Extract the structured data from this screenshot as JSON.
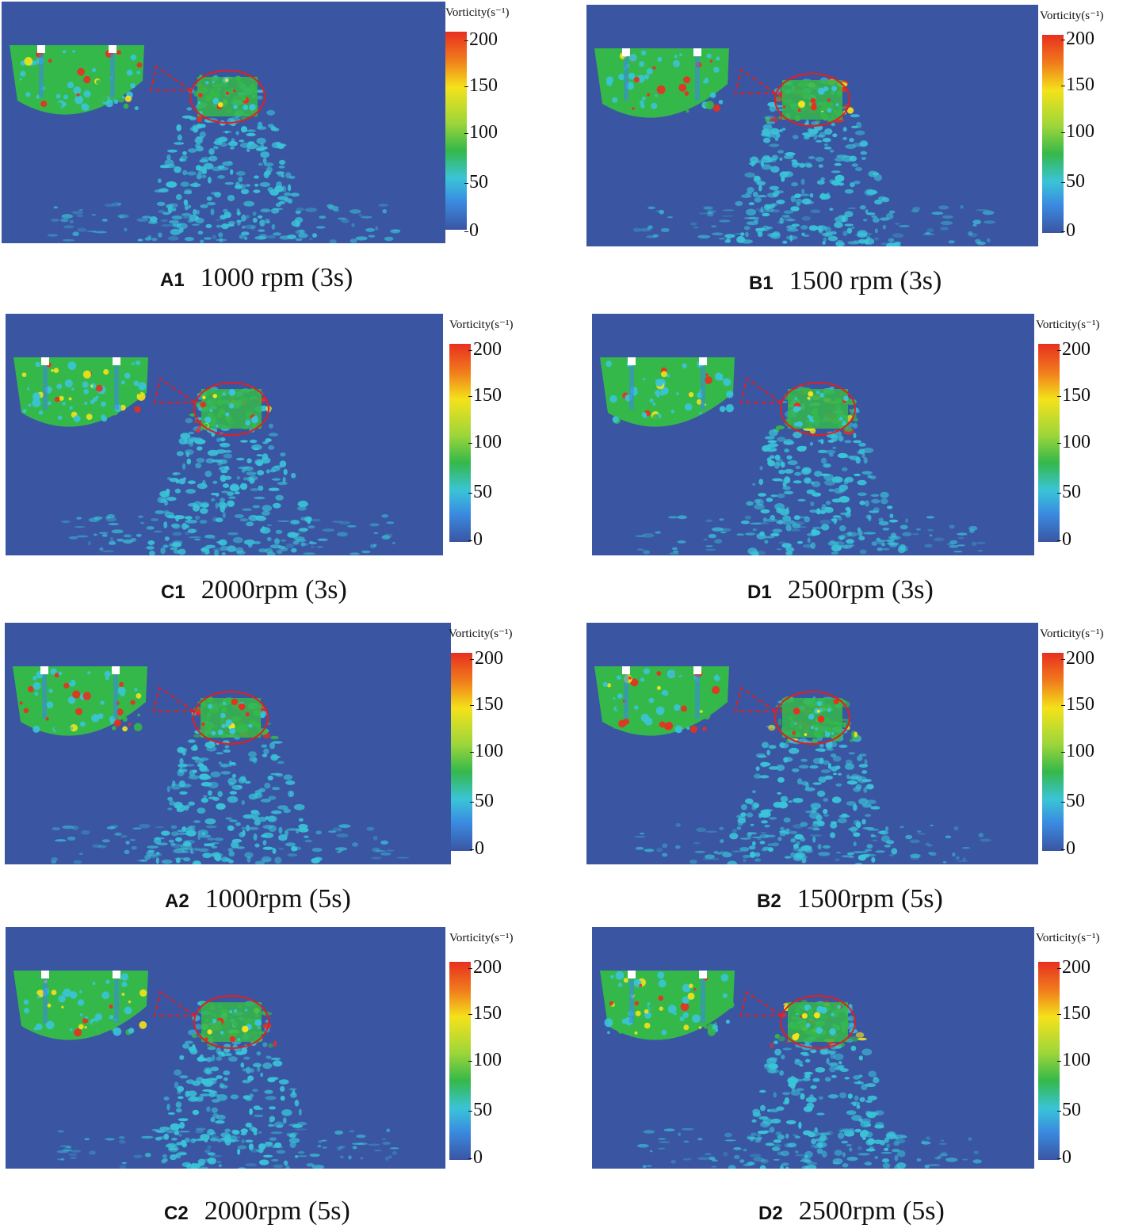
{
  "colorbar": {
    "title": "Vorticity(s⁻¹)",
    "ticks": [
      "200",
      "150",
      "100",
      "50",
      "0"
    ]
  },
  "panels": [
    {
      "id": "A1",
      "label": "1000 rpm (3s)",
      "intensity": 0.25
    },
    {
      "id": "B1",
      "label": "1500 rpm (3s)",
      "intensity": 0.45
    },
    {
      "id": "C1",
      "label": "2000rpm (3s)",
      "intensity": 0.65
    },
    {
      "id": "D1",
      "label": "2500rpm (3s)",
      "intensity": 0.85
    },
    {
      "id": "A2",
      "label": "1000rpm (5s)",
      "intensity": 0.25
    },
    {
      "id": "B2",
      "label": "1500rpm (5s)",
      "intensity": 0.45
    },
    {
      "id": "C2",
      "label": "2000rpm (5s)",
      "intensity": 0.65
    },
    {
      "id": "D2",
      "label": "2500rpm (5s)",
      "intensity": 0.85
    }
  ],
  "colors": {
    "background": "#3a55a2",
    "low": "#3ac4d8",
    "mid": "#35b84a",
    "high": "#f4e21a",
    "peak": "#e83020",
    "marker": "#e02020"
  }
}
